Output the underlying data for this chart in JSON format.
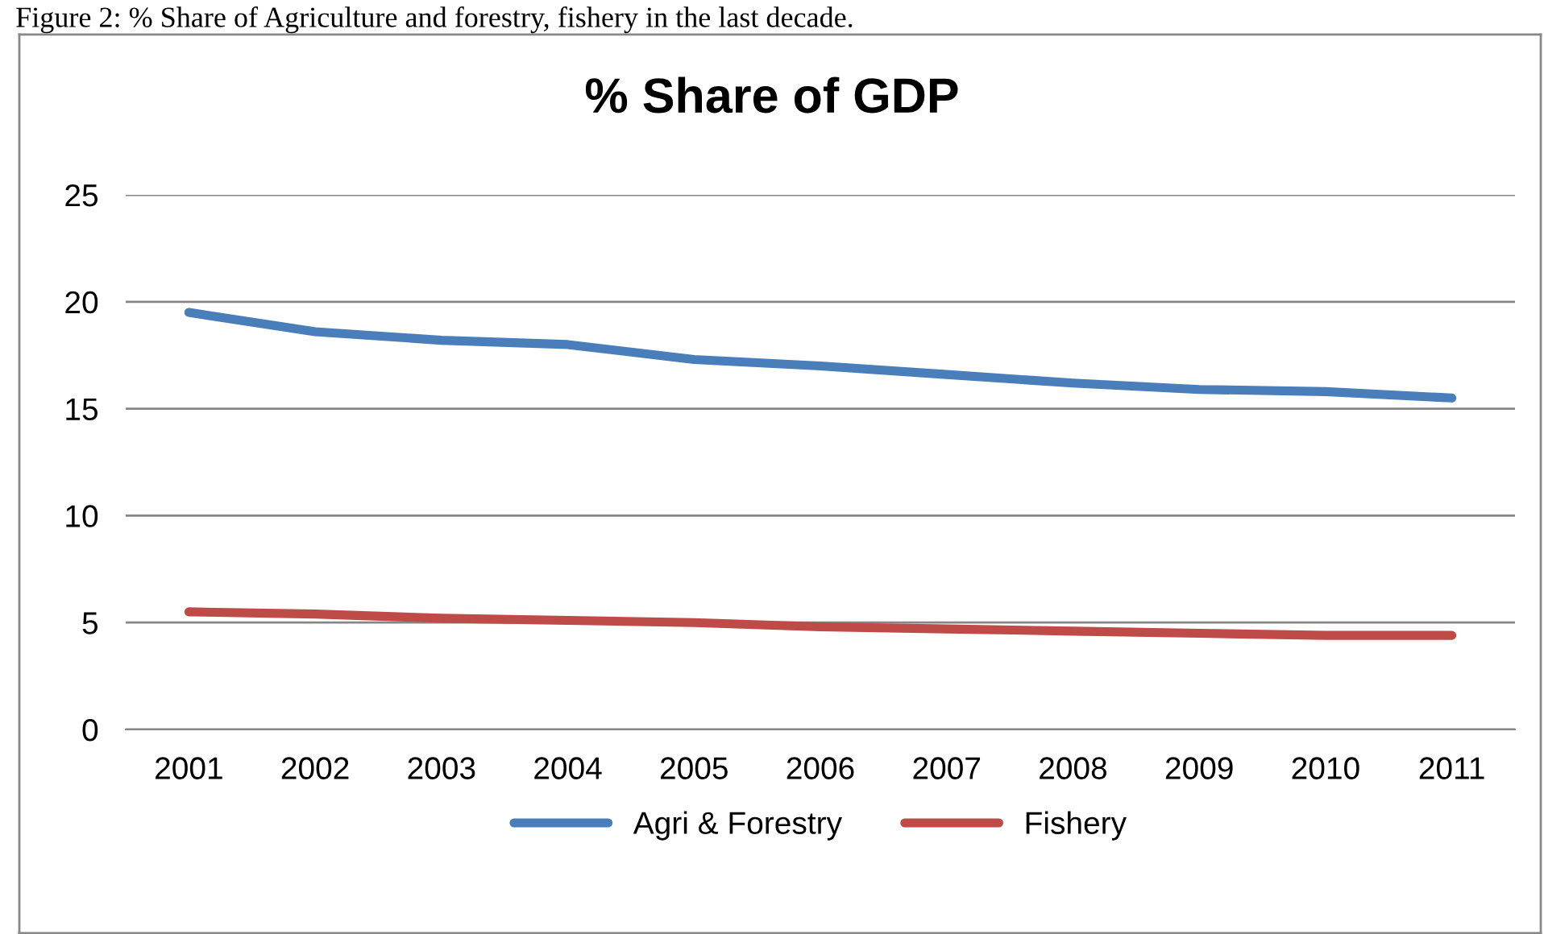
{
  "chart_data": {
    "type": "line",
    "title": "% Share of GDP",
    "annotations": [
      "Figure 2: % Share of Agriculture and forestry, fishery in the last decade."
    ],
    "categories": [
      "2001",
      "2002",
      "2003",
      "2004",
      "2005",
      "2006",
      "2007",
      "2008",
      "2009",
      "2010",
      "2011"
    ],
    "series": [
      {
        "name": "Agri & Forestry",
        "color": "#4a7ebb",
        "values": [
          19.5,
          18.6,
          18.2,
          18.0,
          17.3,
          17.0,
          16.6,
          16.2,
          15.9,
          15.8,
          15.5
        ]
      },
      {
        "name": "Fishery",
        "color": "#be4b48",
        "values": [
          5.5,
          5.4,
          5.2,
          5.1,
          5.0,
          4.8,
          4.7,
          4.6,
          4.5,
          4.4,
          4.4
        ]
      }
    ],
    "ylim": [
      0,
      25
    ],
    "yticks": [
      0,
      5,
      10,
      15,
      20,
      25
    ],
    "grid": "y",
    "legend": "bottom",
    "marker": "none",
    "line_style": "solid"
  }
}
